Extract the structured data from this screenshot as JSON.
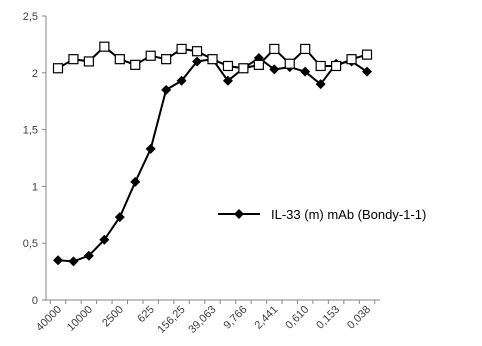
{
  "chart_data": {
    "type": "line",
    "title": "",
    "xlabel": "",
    "ylabel": "",
    "x_tick_labels": [
      "40000",
      "10000",
      "2500",
      "625",
      "156,25",
      "39,063",
      "9,766",
      "2,441",
      "0,610",
      "0,153",
      "0,038"
    ],
    "y_tick_labels": [
      "0",
      "0,5",
      "1",
      "1,5",
      "2",
      "2,5"
    ],
    "y_ticks": [
      0,
      0.5,
      1,
      1.5,
      2,
      2.5
    ],
    "ylim": [
      0,
      2.5
    ],
    "grid": false,
    "legend_position": "right",
    "series": [
      {
        "name": "IL-33 (m) mAb (Bondy-1-1)",
        "marker": "filled-diamond",
        "color": "#000000",
        "values": [
          0.35,
          0.34,
          0.39,
          0.53,
          0.73,
          1.04,
          1.33,
          1.85,
          1.93,
          2.1,
          2.12,
          1.93,
          2.04,
          2.13,
          2.03,
          2.05,
          2.01,
          1.9,
          2.08,
          2.1,
          2.01
        ]
      },
      {
        "name": "",
        "marker": "open-square",
        "color": "#000000",
        "values": [
          2.04,
          2.12,
          2.1,
          2.23,
          2.12,
          2.07,
          2.15,
          2.12,
          2.21,
          2.19,
          2.12,
          2.06,
          2.04,
          2.07,
          2.21,
          2.08,
          2.21,
          2.06,
          2.06,
          2.12,
          2.16
        ]
      }
    ]
  }
}
